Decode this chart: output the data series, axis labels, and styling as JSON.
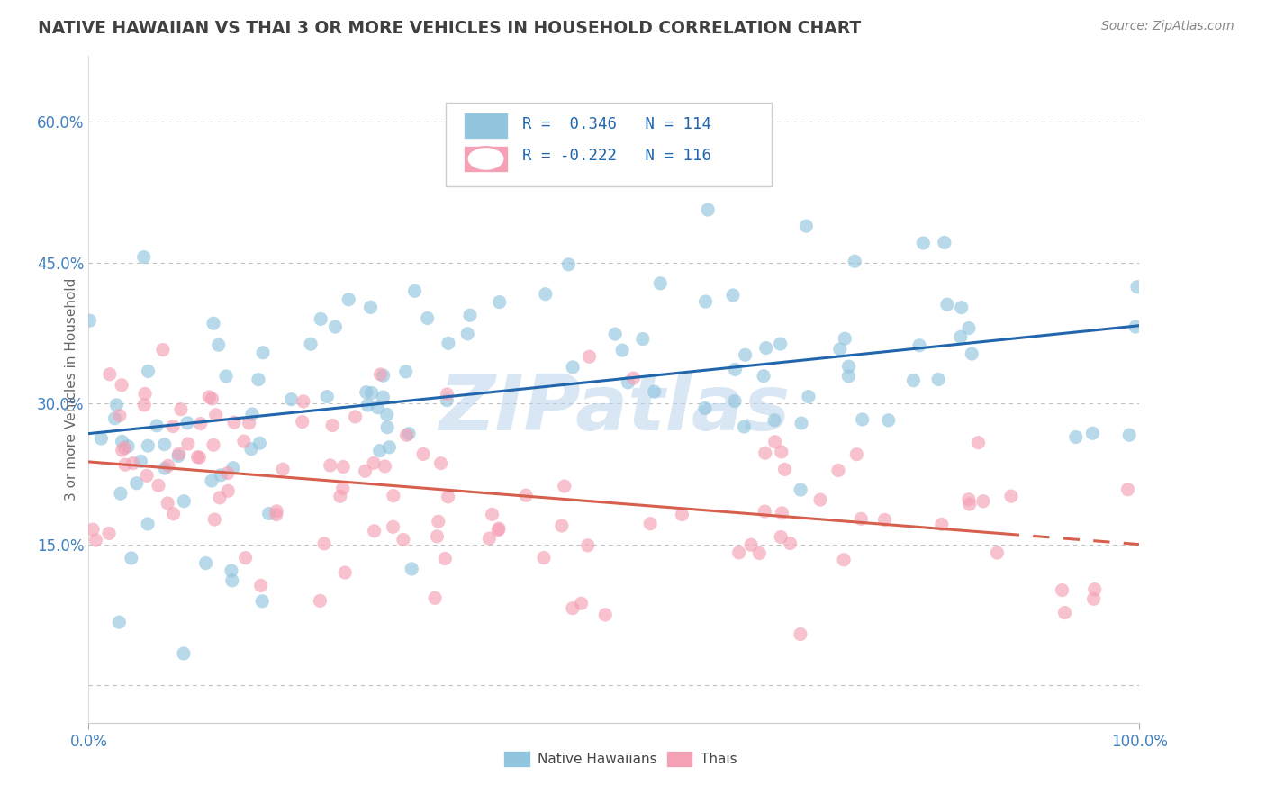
{
  "title": "NATIVE HAWAIIAN VS THAI 3 OR MORE VEHICLES IN HOUSEHOLD CORRELATION CHART",
  "source": "Source: ZipAtlas.com",
  "ylabel": "3 or more Vehicles in Household",
  "xlim": [
    0.0,
    1.0
  ],
  "ylim": [
    -0.04,
    0.67
  ],
  "watermark": "ZIPatlas",
  "blue_color": "#92c5de",
  "pink_color": "#f4a0b5",
  "blue_line_color": "#2166ac",
  "pink_line_color": "#d6604d",
  "background_color": "#ffffff",
  "grid_color": "#bbbbbb",
  "title_color": "#404040",
  "label_color": "#666666",
  "tick_color": "#4080c0",
  "legend_text_color": "#2166ac",
  "blue_intercept": 0.268,
  "blue_slope": 0.115,
  "pink_intercept": 0.238,
  "pink_slope": -0.088,
  "blue_N": 114,
  "pink_N": 116
}
